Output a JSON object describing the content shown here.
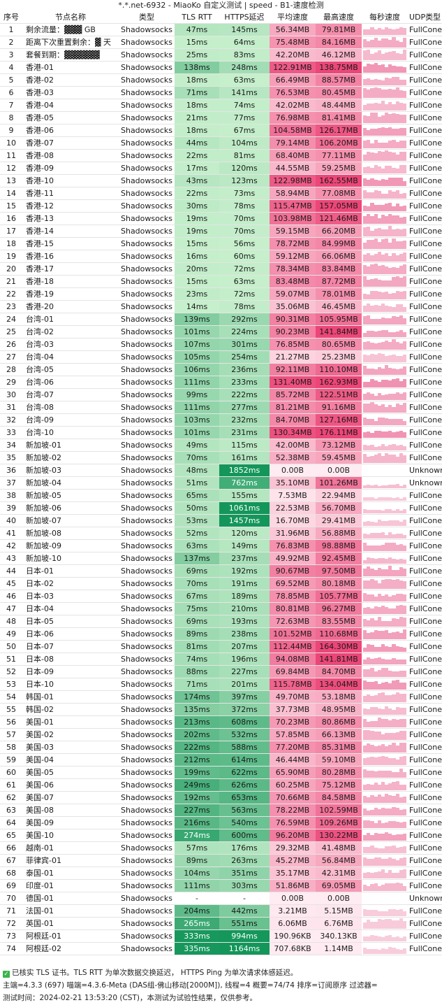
{
  "title": "*.*.net-6932 - MiaoKo 自定义测试 | speed - B1-速度检测",
  "headers": [
    "序号",
    "节点名称",
    "类型",
    "TLS RTT",
    "HTTPS延迟",
    "平均速度",
    "最高速度",
    "每秒速度",
    "UDP类型"
  ],
  "rows": [
    [
      "1",
      "剩余流量：▓▓▓ GB",
      "Shadowsocks",
      "47ms",
      "145ms",
      "56.34MB",
      "79.81MB",
      "FullCone"
    ],
    [
      "2",
      "距离下次重置剩余：▓ 天",
      "Shadowsocks",
      "15ms",
      "64ms",
      "75.48MB",
      "84.16MB",
      "FullCone"
    ],
    [
      "3",
      "套餐到期：▓▓▓▓▓▓",
      "Shadowsocks",
      "25ms",
      "83ms",
      "42.20MB",
      "46.12MB",
      "FullCone"
    ],
    [
      "4",
      "香港-01",
      "Shadowsocks",
      "138ms",
      "248ms",
      "122.91MB",
      "138.75MB",
      "FullCone"
    ],
    [
      "5",
      "香港-02",
      "Shadowsocks",
      "18ms",
      "63ms",
      "66.49MB",
      "88.57MB",
      "FullCone"
    ],
    [
      "6",
      "香港-03",
      "Shadowsocks",
      "71ms",
      "141ms",
      "76.53MB",
      "80.45MB",
      "FullCone"
    ],
    [
      "7",
      "香港-04",
      "Shadowsocks",
      "18ms",
      "74ms",
      "42.02MB",
      "48.44MB",
      "FullCone"
    ],
    [
      "8",
      "香港-05",
      "Shadowsocks",
      "21ms",
      "77ms",
      "76.98MB",
      "81.41MB",
      "FullCone"
    ],
    [
      "9",
      "香港-06",
      "Shadowsocks",
      "18ms",
      "67ms",
      "104.58MB",
      "126.17MB",
      "FullCone"
    ],
    [
      "10",
      "香港-07",
      "Shadowsocks",
      "44ms",
      "104ms",
      "79.14MB",
      "106.20MB",
      "FullCone"
    ],
    [
      "11",
      "香港-08",
      "Shadowsocks",
      "22ms",
      "81ms",
      "68.40MB",
      "77.11MB",
      "FullCone"
    ],
    [
      "12",
      "香港-09",
      "Shadowsocks",
      "17ms",
      "120ms",
      "44.55MB",
      "59.25MB",
      "FullCone"
    ],
    [
      "13",
      "香港-10",
      "Shadowsocks",
      "43ms",
      "123ms",
      "122.98MB",
      "162.55MB",
      "FullCone"
    ],
    [
      "14",
      "香港-11",
      "Shadowsocks",
      "22ms",
      "73ms",
      "58.94MB",
      "77.08MB",
      "FullCone"
    ],
    [
      "15",
      "香港-12",
      "Shadowsocks",
      "30ms",
      "78ms",
      "115.47MB",
      "157.05MB",
      "FullCone"
    ],
    [
      "16",
      "香港-13",
      "Shadowsocks",
      "19ms",
      "70ms",
      "103.98MB",
      "121.46MB",
      "FullCone"
    ],
    [
      "17",
      "香港-14",
      "Shadowsocks",
      "19ms",
      "70ms",
      "59.15MB",
      "66.20MB",
      "FullCone"
    ],
    [
      "18",
      "香港-15",
      "Shadowsocks",
      "15ms",
      "56ms",
      "78.72MB",
      "84.99MB",
      "FullCone"
    ],
    [
      "19",
      "香港-16",
      "Shadowsocks",
      "16ms",
      "60ms",
      "59.12MB",
      "66.06MB",
      "FullCone"
    ],
    [
      "20",
      "香港-17",
      "Shadowsocks",
      "20ms",
      "72ms",
      "78.34MB",
      "83.84MB",
      "FullCone"
    ],
    [
      "21",
      "香港-18",
      "Shadowsocks",
      "15ms",
      "63ms",
      "83.48MB",
      "87.72MB",
      "FullCone"
    ],
    [
      "22",
      "香港-19",
      "Shadowsocks",
      "23ms",
      "72ms",
      "59.07MB",
      "78.01MB",
      "FullCone"
    ],
    [
      "23",
      "香港-20",
      "Shadowsocks",
      "14ms",
      "78ms",
      "35.06MB",
      "46.45MB",
      "FullCone"
    ],
    [
      "24",
      "台湾-01",
      "Shadowsocks",
      "139ms",
      "292ms",
      "90.31MB",
      "105.95MB",
      "FullCone"
    ],
    [
      "25",
      "台湾-02",
      "Shadowsocks",
      "101ms",
      "224ms",
      "90.23MB",
      "141.84MB",
      "FullCone"
    ],
    [
      "26",
      "台湾-03",
      "Shadowsocks",
      "107ms",
      "301ms",
      "76.85MB",
      "80.65MB",
      "FullCone"
    ],
    [
      "27",
      "台湾-04",
      "Shadowsocks",
      "105ms",
      "254ms",
      "21.27MB",
      "25.23MB",
      "FullCone"
    ],
    [
      "28",
      "台湾-05",
      "Shadowsocks",
      "106ms",
      "236ms",
      "92.11MB",
      "110.10MB",
      "FullCone"
    ],
    [
      "29",
      "台湾-06",
      "Shadowsocks",
      "111ms",
      "233ms",
      "131.40MB",
      "162.93MB",
      "FullCone"
    ],
    [
      "30",
      "台湾-07",
      "Shadowsocks",
      "99ms",
      "222ms",
      "85.72MB",
      "122.51MB",
      "FullCone"
    ],
    [
      "31",
      "台湾-08",
      "Shadowsocks",
      "111ms",
      "277ms",
      "81.21MB",
      "91.16MB",
      "FullCone"
    ],
    [
      "32",
      "台湾-09",
      "Shadowsocks",
      "103ms",
      "232ms",
      "84.70MB",
      "127.16MB",
      "FullCone"
    ],
    [
      "33",
      "台湾-10",
      "Shadowsocks",
      "101ms",
      "231ms",
      "130.34MB",
      "176.11MB",
      "FullCone"
    ],
    [
      "34",
      "新加坡-01",
      "Shadowsocks",
      "49ms",
      "115ms",
      "42.00MB",
      "73.12MB",
      "FullCone"
    ],
    [
      "35",
      "新加坡-02",
      "Shadowsocks",
      "70ms",
      "161ms",
      "52.38MB",
      "59.45MB",
      "FullCone"
    ],
    [
      "36",
      "新加坡-03",
      "Shadowsocks",
      "48ms",
      "1852ms",
      "0.00B",
      "0.00B",
      "Unknown"
    ],
    [
      "37",
      "新加坡-04",
      "Shadowsocks",
      "51ms",
      "762ms",
      "35.10MB",
      "101.26MB",
      "Unknown"
    ],
    [
      "38",
      "新加坡-05",
      "Shadowsocks",
      "65ms",
      "155ms",
      "7.53MB",
      "22.94MB",
      "FullCone"
    ],
    [
      "39",
      "新加坡-06",
      "Shadowsocks",
      "50ms",
      "1061ms",
      "22.53MB",
      "56.70MB",
      "FullCone"
    ],
    [
      "40",
      "新加坡-07",
      "Shadowsocks",
      "53ms",
      "1457ms",
      "16.70MB",
      "29.41MB",
      "FullCone"
    ],
    [
      "41",
      "新加坡-08",
      "Shadowsocks",
      "52ms",
      "120ms",
      "31.96MB",
      "56.88MB",
      "FullCone"
    ],
    [
      "42",
      "新加坡-09",
      "Shadowsocks",
      "63ms",
      "149ms",
      "76.83MB",
      "98.88MB",
      "FullCone"
    ],
    [
      "43",
      "新加坡-10",
      "Shadowsocks",
      "137ms",
      "237ms",
      "49.92MB",
      "92.45MB",
      "FullCone"
    ],
    [
      "44",
      "日本-01",
      "Shadowsocks",
      "69ms",
      "192ms",
      "90.67MB",
      "97.50MB",
      "FullCone"
    ],
    [
      "45",
      "日本-02",
      "Shadowsocks",
      "70ms",
      "191ms",
      "69.52MB",
      "80.18MB",
      "FullCone"
    ],
    [
      "46",
      "日本-03",
      "Shadowsocks",
      "67ms",
      "189ms",
      "78.85MB",
      "105.77MB",
      "FullCone"
    ],
    [
      "47",
      "日本-04",
      "Shadowsocks",
      "75ms",
      "210ms",
      "80.81MB",
      "96.27MB",
      "FullCone"
    ],
    [
      "48",
      "日本-05",
      "Shadowsocks",
      "69ms",
      "193ms",
      "72.63MB",
      "83.55MB",
      "FullCone"
    ],
    [
      "49",
      "日本-06",
      "Shadowsocks",
      "89ms",
      "238ms",
      "101.52MB",
      "110.68MB",
      "FullCone"
    ],
    [
      "50",
      "日本-07",
      "Shadowsocks",
      "81ms",
      "207ms",
      "112.44MB",
      "164.30MB",
      "FullCone"
    ],
    [
      "51",
      "日本-08",
      "Shadowsocks",
      "74ms",
      "196ms",
      "94.08MB",
      "141.81MB",
      "FullCone"
    ],
    [
      "52",
      "日本-09",
      "Shadowsocks",
      "88ms",
      "227ms",
      "69.84MB",
      "84.70MB",
      "FullCone"
    ],
    [
      "53",
      "日本-10",
      "Shadowsocks",
      "71ms",
      "201ms",
      "115.78MB",
      "134.04MB",
      "FullCone"
    ],
    [
      "54",
      "韩国-01",
      "Shadowsocks",
      "174ms",
      "397ms",
      "49.70MB",
      "53.18MB",
      "FullCone"
    ],
    [
      "55",
      "韩国-02",
      "Shadowsocks",
      "135ms",
      "372ms",
      "37.73MB",
      "48.95MB",
      "FullCone"
    ],
    [
      "56",
      "美国-01",
      "Shadowsocks",
      "213ms",
      "608ms",
      "70.23MB",
      "80.86MB",
      "FullCone"
    ],
    [
      "57",
      "美国-02",
      "Shadowsocks",
      "202ms",
      "532ms",
      "57.85MB",
      "66.13MB",
      "FullCone"
    ],
    [
      "58",
      "美国-03",
      "Shadowsocks",
      "222ms",
      "588ms",
      "77.20MB",
      "85.31MB",
      "FullCone"
    ],
    [
      "59",
      "美国-04",
      "Shadowsocks",
      "212ms",
      "614ms",
      "46.44MB",
      "59.10MB",
      "FullCone"
    ],
    [
      "60",
      "美国-05",
      "Shadowsocks",
      "199ms",
      "622ms",
      "65.90MB",
      "80.28MB",
      "FullCone"
    ],
    [
      "61",
      "美国-06",
      "Shadowsocks",
      "249ms",
      "626ms",
      "60.25MB",
      "75.12MB",
      "FullCone"
    ],
    [
      "62",
      "美国-07",
      "Shadowsocks",
      "192ms",
      "653ms",
      "70.66MB",
      "84.58MB",
      "FullCone"
    ],
    [
      "63",
      "美国-08",
      "Shadowsocks",
      "227ms",
      "563ms",
      "78.22MB",
      "102.59MB",
      "FullCone"
    ],
    [
      "64",
      "美国-09",
      "Shadowsocks",
      "216ms",
      "540ms",
      "76.59MB",
      "109.26MB",
      "FullCone"
    ],
    [
      "65",
      "美国-10",
      "Shadowsocks",
      "274ms",
      "600ms",
      "96.20MB",
      "130.22MB",
      "FullCone"
    ],
    [
      "66",
      "越南-01",
      "Shadowsocks",
      "57ms",
      "176ms",
      "29.32MB",
      "41.48MB",
      "FullCone"
    ],
    [
      "67",
      "菲律宾-01",
      "Shadowsocks",
      "89ms",
      "263ms",
      "45.27MB",
      "56.84MB",
      "FullCone"
    ],
    [
      "68",
      "泰国-01",
      "Shadowsocks",
      "104ms",
      "351ms",
      "35.17MB",
      "42.31MB",
      "FullCone"
    ],
    [
      "69",
      "印度-01",
      "Shadowsocks",
      "111ms",
      "303ms",
      "51.86MB",
      "69.05MB",
      "FullCone"
    ],
    [
      "70",
      "德国-01",
      "Shadowsocks",
      "-",
      "-",
      "0.00B",
      "0.00B",
      "Unknown"
    ],
    [
      "71",
      "法国-01",
      "Shadowsocks",
      "204ms",
      "442ms",
      "3.21MB",
      "5.15MB",
      "FullCone"
    ],
    [
      "72",
      "英国-01",
      "Shadowsocks",
      "265ms",
      "551ms",
      "6.06MB",
      "6.76MB",
      "FullCone"
    ],
    [
      "73",
      "阿根廷-01",
      "Shadowsocks",
      "333ms",
      "994ms",
      "190.96KB",
      "340.13KB",
      "FullCone"
    ],
    [
      "74",
      "阿根廷-02",
      "Shadowsocks",
      "335ms",
      "1164ms",
      "707.68KB",
      "1.14MB",
      "FullCone"
    ]
  ],
  "footer": {
    "line1": "已核实 TLS 证书。TLS RTT 为单次数据交换延迟， HTTPS Ping 为单次请求体感延迟。",
    "line2": "主端=4.3.3 (697) 喵端=4.3.6-Meta (DAS组-佛山移动[2000M]), 线程=4 概要=74/74 排序=订阅原序 过滤器=",
    "line3": "测试时间：2024-02-21 13:53:20 (CST)，本测试为试验性结果，仅供参考。"
  },
  "colors": {
    "latency_green": "#2ec27e",
    "speed_pink": "#ee5a8a",
    "spark_pink": "#f090b0"
  },
  "icons": {
    "footer_check": "check-icon"
  }
}
